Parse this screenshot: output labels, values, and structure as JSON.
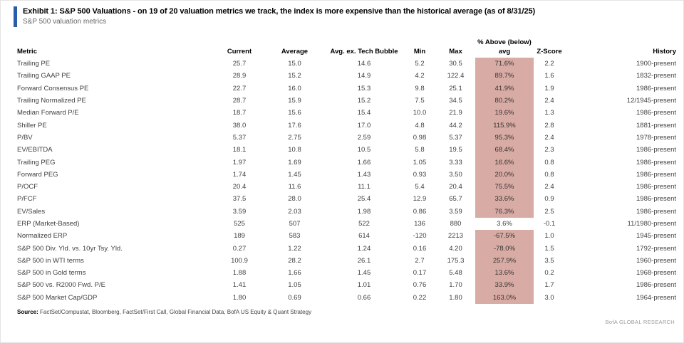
{
  "exhibit": {
    "title": "Exhibit 1: S&P 500 Valuations - on 19 of 20 valuation metrics we track, the index is more expensive than the historical average (as of 8/31/25)",
    "subtitle": "S&P 500 valuation metrics"
  },
  "colors": {
    "accent_blue": "#2b5ca9",
    "highlight_pink": "#d8aba4"
  },
  "table": {
    "group_header": "% Above (below)",
    "headers": [
      "Metric",
      "Current",
      "Average",
      "Avg. ex. Tech Bubble",
      "Min",
      "Max",
      "avg",
      "Z-Score",
      "History"
    ],
    "rows": [
      {
        "metric": "Trailing PE",
        "current": "25.7",
        "average": "15.0",
        "avg_ex_tech": "14.6",
        "min": "5.2",
        "max": "30.5",
        "pct_above": "71.6%",
        "z_score": "2.2",
        "history": "1900-present",
        "highlighted": true
      },
      {
        "metric": "Trailing GAAP PE",
        "current": "28.9",
        "average": "15.2",
        "avg_ex_tech": "14.9",
        "min": "4.2",
        "max": "122.4",
        "pct_above": "89.7%",
        "z_score": "1.6",
        "history": "1832-present",
        "highlighted": true
      },
      {
        "metric": "Forward Consensus PE",
        "current": "22.7",
        "average": "16.0",
        "avg_ex_tech": "15.3",
        "min": "9.8",
        "max": "25.1",
        "pct_above": "41.9%",
        "z_score": "1.9",
        "history": "1986-present",
        "highlighted": true
      },
      {
        "metric": "Trailing Normalized PE",
        "current": "28.7",
        "average": "15.9",
        "avg_ex_tech": "15.2",
        "min": "7.5",
        "max": "34.5",
        "pct_above": "80.2%",
        "z_score": "2.4",
        "history": "12/1945-present",
        "highlighted": true
      },
      {
        "metric": "Median Forward P/E",
        "current": "18.7",
        "average": "15.6",
        "avg_ex_tech": "15.4",
        "min": "10.0",
        "max": "21.9",
        "pct_above": "19.6%",
        "z_score": "1.3",
        "history": "1986-present",
        "highlighted": true
      },
      {
        "metric": "Shiller PE",
        "current": "38.0",
        "average": "17.6",
        "avg_ex_tech": "17.0",
        "min": "4.8",
        "max": "44.2",
        "pct_above": "115.9%",
        "z_score": "2.8",
        "history": "1881-present",
        "highlighted": true
      },
      {
        "metric": "P/BV",
        "current": "5.37",
        "average": "2.75",
        "avg_ex_tech": "2.59",
        "min": "0.98",
        "max": "5.37",
        "pct_above": "95.3%",
        "z_score": "2.4",
        "history": "1978-present",
        "highlighted": true
      },
      {
        "metric": "EV/EBITDA",
        "current": "18.1",
        "average": "10.8",
        "avg_ex_tech": "10.5",
        "min": "5.8",
        "max": "19.5",
        "pct_above": "68.4%",
        "z_score": "2.3",
        "history": "1986-present",
        "highlighted": true
      },
      {
        "metric": "Trailing PEG",
        "current": "1.97",
        "average": "1.69",
        "avg_ex_tech": "1.66",
        "min": "1.05",
        "max": "3.33",
        "pct_above": "16.6%",
        "z_score": "0.8",
        "history": "1986-present",
        "highlighted": true
      },
      {
        "metric": "Forward PEG",
        "current": "1.74",
        "average": "1.45",
        "avg_ex_tech": "1.43",
        "min": "0.93",
        "max": "3.50",
        "pct_above": "20.0%",
        "z_score": "0.8",
        "history": "1986-present",
        "highlighted": true
      },
      {
        "metric": "P/OCF",
        "current": "20.4",
        "average": "11.6",
        "avg_ex_tech": "11.1",
        "min": "5.4",
        "max": "20.4",
        "pct_above": "75.5%",
        "z_score": "2.4",
        "history": "1986-present",
        "highlighted": true
      },
      {
        "metric": "P/FCF",
        "current": "37.5",
        "average": "28.0",
        "avg_ex_tech": "25.4",
        "min": "12.9",
        "max": "65.7",
        "pct_above": "33.6%",
        "z_score": "0.9",
        "history": "1986-present",
        "highlighted": true
      },
      {
        "metric": "EV/Sales",
        "current": "3.59",
        "average": "2.03",
        "avg_ex_tech": "1.98",
        "min": "0.86",
        "max": "3.59",
        "pct_above": "76.3%",
        "z_score": "2.5",
        "history": "1986-present",
        "highlighted": true
      },
      {
        "metric": "ERP (Market-Based)",
        "current": "525",
        "average": "507",
        "avg_ex_tech": "522",
        "min": "136",
        "max": "880",
        "pct_above": "3.6%",
        "z_score": "-0.1",
        "history": "11/1980-present",
        "highlighted": false
      },
      {
        "metric": "Normalized ERP",
        "current": "189",
        "average": "583",
        "avg_ex_tech": "614",
        "min": "-120",
        "max": "2213",
        "pct_above": "-67.5%",
        "z_score": "1.0",
        "history": "1945-present",
        "highlighted": true
      },
      {
        "metric": "S&P 500 Div. Yld. vs. 10yr Tsy. Yld.",
        "current": "0.27",
        "average": "1.22",
        "avg_ex_tech": "1.24",
        "min": "0.16",
        "max": "4.20",
        "pct_above": "-78.0%",
        "z_score": "1.5",
        "history": "1792-present",
        "highlighted": true
      },
      {
        "metric": "S&P 500 in WTI terms",
        "current": "100.9",
        "average": "28.2",
        "avg_ex_tech": "26.1",
        "min": "2.7",
        "max": "175.3",
        "pct_above": "257.9%",
        "z_score": "3.5",
        "history": "1960-present",
        "highlighted": true
      },
      {
        "metric": "S&P 500 in Gold terms",
        "current": "1.88",
        "average": "1.66",
        "avg_ex_tech": "1.45",
        "min": "0.17",
        "max": "5.48",
        "pct_above": "13.6%",
        "z_score": "0.2",
        "history": "1968-present",
        "highlighted": true
      },
      {
        "metric": "S&P 500 vs. R2000 Fwd. P/E",
        "current": "1.41",
        "average": "1.05",
        "avg_ex_tech": "1.01",
        "min": "0.76",
        "max": "1.70",
        "pct_above": "33.9%",
        "z_score": "1.7",
        "history": "1986-present",
        "highlighted": true
      },
      {
        "metric": "S&P 500 Market Cap/GDP",
        "current": "1.80",
        "average": "0.69",
        "avg_ex_tech": "0.66",
        "min": "0.22",
        "max": "1.80",
        "pct_above": "163.0%",
        "z_score": "3.0",
        "history": "1964-present",
        "highlighted": true
      }
    ]
  },
  "source": {
    "label": "Source:",
    "text": " FactSet/Compustat, Bloomberg, FactSet/First Call, Global Financial Data, BofA US Equity & Quant Strategy"
  },
  "footer": {
    "brand": "BofA GLOBAL RESEARCH"
  }
}
